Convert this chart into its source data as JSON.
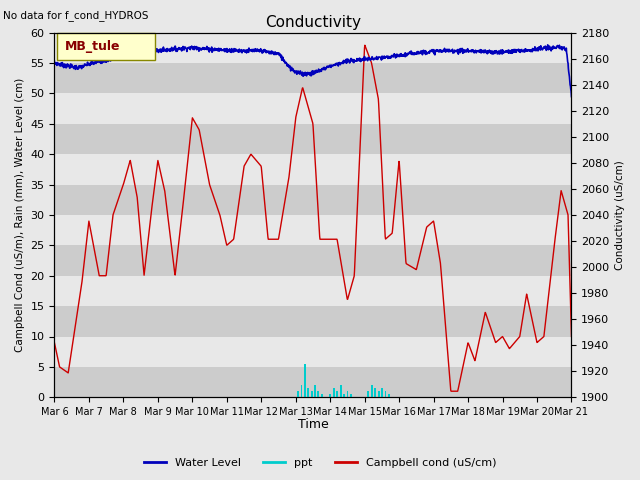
{
  "title": "Conductivity",
  "top_left_text": "No data for f_cond_HYDROS",
  "ylabel_left": "Campbell Cond (uS/m), Rain (mm), Water Level (cm)",
  "ylabel_right": "Conductivity (uS/cm)",
  "xlabel": "Time",
  "ylim_left": [
    0,
    60
  ],
  "ylim_right": [
    1900,
    2180
  ],
  "legend_label": "MB_tule",
  "bg_color": "#e8e8e8",
  "plot_bg_color_dark": "#cccccc",
  "plot_bg_color_light": "#e8e8e8",
  "water_level_color": "#0000bb",
  "ppt_color": "#00cccc",
  "campbell_color": "#cc0000",
  "mb_tule_text_color": "#880000",
  "x_tick_labels": [
    "Mar 6",
    "Mar 7",
    "Mar 8",
    "Mar 9",
    "Mar 10",
    "Mar 11",
    "Mar 12",
    "Mar 13",
    "Mar 14",
    "Mar 15",
    "Mar 16",
    "Mar 17",
    "Mar 18",
    "Mar 19",
    "Mar 20",
    "Mar 21"
  ],
  "x_ticks": [
    0,
    1,
    2,
    3,
    4,
    5,
    6,
    7,
    8,
    9,
    10,
    11,
    12,
    13,
    14,
    15
  ],
  "right_yticks": [
    1900,
    1920,
    1940,
    1960,
    1980,
    2000,
    2020,
    2040,
    2060,
    2080,
    2100,
    2120,
    2140,
    2160,
    2180
  ],
  "left_yticks": [
    0,
    5,
    10,
    15,
    20,
    25,
    30,
    35,
    40,
    45,
    50,
    55,
    60
  ]
}
